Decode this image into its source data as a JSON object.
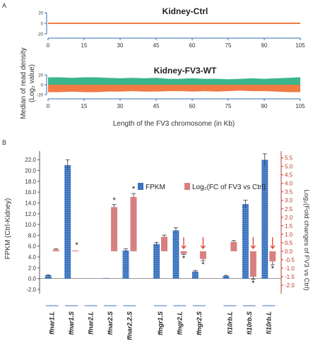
{
  "panel_a": {
    "letter": "A",
    "ylabel": "Median of read density",
    "ylabel_sub": "(Log₂ value)",
    "xlabel": "Length of the FV3 chromosome (in Kb)",
    "colors": {
      "ctrl_line": "#f07b45",
      "wt_top": "#3cb58a",
      "wt_bottom": "#f07b45",
      "axis": "#2f6db5"
    }
  },
  "panel_b": {
    "letter": "B",
    "ylabel": "FPKM (Ctrl-Kidney)",
    "y2label": "Log₂(Fold changes of FV3 vs Ctrl)",
    "legend": {
      "fpkm": "FPKM",
      "log2": "Log₂(FC of FV3 vs Ctrl)"
    },
    "colors": {
      "fpkm": "#3a73c0",
      "log2": "#d88080",
      "arrow": "#d9302b",
      "y2axis": "#c0392b"
    }
  },
  "chart_data": [
    {
      "type": "area",
      "title": "Kidney-Ctrl",
      "x": [
        0,
        15,
        30,
        45,
        60,
        75,
        90,
        105
      ],
      "series": [
        {
          "values": [
            0,
            0,
            0,
            0,
            0,
            0,
            0,
            0
          ]
        }
      ],
      "ylabel": "Median of read density (Log₂ value)",
      "xlabel": "",
      "yticks": [
        20,
        0,
        -20
      ],
      "ylim": [
        -20,
        20
      ],
      "xlim": [
        0,
        105
      ]
    },
    {
      "type": "area",
      "title": "Kidney-FV3-WT",
      "x": [
        0,
        5,
        10,
        15,
        20,
        25,
        30,
        35,
        40,
        45,
        50,
        55,
        60,
        65,
        70,
        75,
        80,
        85,
        90,
        95,
        100,
        105
      ],
      "series": [
        {
          "values": [
            15,
            15,
            14,
            15,
            15,
            14,
            13,
            14,
            13,
            14,
            12,
            12,
            13,
            12,
            12,
            11,
            12,
            13,
            12,
            13,
            14,
            15
          ]
        },
        {
          "values": [
            -15,
            -15,
            -14,
            -15,
            -15,
            -14,
            -14,
            -13,
            -14,
            -14,
            -13,
            -13,
            -14,
            -13,
            -14,
            -13,
            -12,
            -13,
            -13,
            -14,
            -15,
            -15
          ]
        }
      ],
      "ylabel": "Median of read density (Log₂ value)",
      "xlabel": "Length of the FV3 chromosome (in Kb)",
      "yticks": [
        20,
        0,
        -20
      ],
      "ylim": [
        -20,
        20
      ],
      "xlim": [
        0,
        105
      ]
    },
    {
      "type": "bar",
      "categories": [
        "ffnar1.L",
        "ffnar1.S",
        "ffnar2.L",
        "ffnar2.S",
        "ffnar2.2.S",
        "ffngr1.S",
        "ffngr2.L",
        "ffngr2.S",
        "fi10rb.L",
        "fi10rb.S",
        "fi10rb.L"
      ],
      "series": [
        {
          "name": "FPKM",
          "axis": "left",
          "values": [
            0.6,
            21.0,
            0.0,
            0.1,
            5.2,
            6.4,
            8.9,
            1.3,
            0.5,
            13.8,
            22.0
          ],
          "errors": [
            0.1,
            1.0,
            0.0,
            0.0,
            0.3,
            0.3,
            0.5,
            0.2,
            0.1,
            0.7,
            1.1
          ]
        },
        {
          "name": "Log₂(FC of FV3 vs Ctrl)",
          "axis": "right",
          "values": [
            0.1,
            0.05,
            0.0,
            2.6,
            3.2,
            0.85,
            -0.15,
            -0.45,
            0.55,
            -1.5,
            -0.6
          ],
          "errors": [
            0.05,
            0.0,
            0.0,
            0.15,
            0.2,
            0.1,
            0.05,
            0.1,
            0.08,
            0.15,
            0.2
          ]
        }
      ],
      "significance": [
        "",
        "*",
        "",
        "*",
        "*",
        "",
        "*",
        "*",
        "",
        "*",
        "*"
      ],
      "down_arrows": [
        false,
        false,
        false,
        false,
        false,
        false,
        true,
        true,
        false,
        true,
        true
      ],
      "group_breaks_after": [
        4,
        7
      ],
      "yticks": [
        -2.0,
        0.0,
        2.0,
        4.0,
        6.0,
        8.0,
        10.0,
        12.0,
        14.0,
        16.0,
        18.0,
        20.0,
        22.0
      ],
      "ylim": [
        -2.8,
        23.6
      ],
      "y2ticks": [
        -2.0,
        -1.5,
        -1.0,
        -0.5,
        0.0,
        0.5,
        1.0,
        1.5,
        2.0,
        2.5,
        3.0,
        3.5,
        4.0,
        4.5,
        5.0,
        5.5
      ],
      "y2lim": [
        -2.5,
        5.9
      ],
      "ylabel": "FPKM (Ctrl-Kidney)",
      "y2label": "Log₂(Fold changes of FV3 vs Ctrl)"
    }
  ]
}
